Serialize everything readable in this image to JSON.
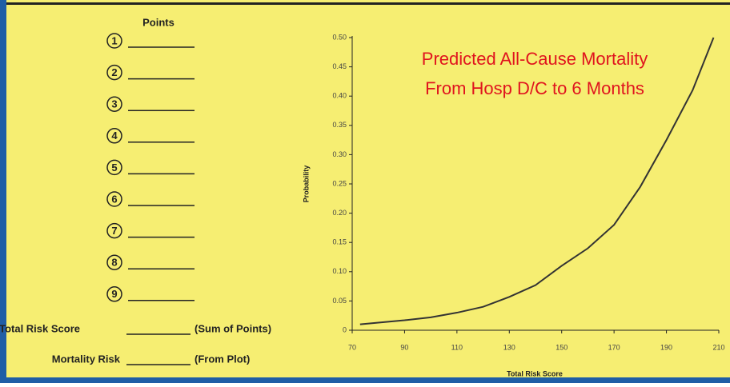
{
  "worksheet": {
    "header": "Points",
    "items": [
      "1",
      "2",
      "3",
      "4",
      "5",
      "6",
      "7",
      "8",
      "9"
    ],
    "total_label": "Total Risk Score",
    "total_note": "(Sum of Points)",
    "risk_label": "Mortality Risk",
    "risk_note": "(From Plot)"
  },
  "chart_data": {
    "type": "line",
    "title_lines": [
      "Predicted All-Cause Mortality",
      "From Hosp D/C to 6 Months"
    ],
    "x_label": "Total Risk Score",
    "y_label": "Probability",
    "x": [
      73,
      80,
      90,
      100,
      110,
      120,
      130,
      140,
      150,
      160,
      170,
      180,
      190,
      200,
      208
    ],
    "series": [
      {
        "name": "Probability",
        "color": "#333333",
        "values": [
          0.01,
          0.013,
          0.017,
          0.022,
          0.03,
          0.04,
          0.057,
          0.077,
          0.11,
          0.14,
          0.18,
          0.245,
          0.325,
          0.41,
          0.5
        ]
      }
    ],
    "title_color": "#e0141e",
    "xlim": [
      70,
      210
    ],
    "xticks": [
      70,
      90,
      110,
      130,
      150,
      170,
      190,
      210
    ],
    "ylim": [
      0,
      0.5
    ],
    "yticks": [
      0,
      0.05,
      {
        "value": 0.1,
        "label": "0.10"
      },
      0.15,
      {
        "value": 0.2,
        "label": "0.20"
      },
      0.25,
      {
        "value": 0.3,
        "label": "0.30"
      },
      0.35,
      {
        "value": 0.4,
        "label": "0.40"
      },
      0.45,
      {
        "value": 0.5,
        "label": "0.50"
      }
    ],
    "grid": false
  }
}
